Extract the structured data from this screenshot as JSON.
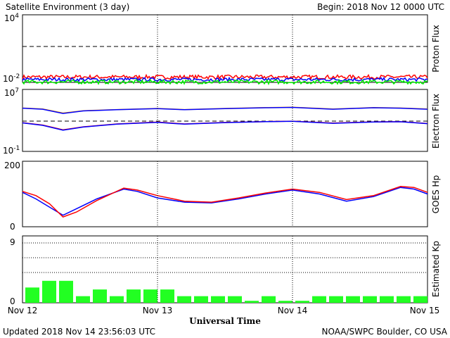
{
  "header": {
    "title": "Satellite Environment (3 day)",
    "begin": "Begin:  2018 Nov 12 0000 UTC"
  },
  "footer": {
    "updated": "Updated 2018 Nov 14 23:56:03 UTC",
    "credit": "NOAA/SWPC Boulder, CO USA"
  },
  "colors": {
    "red": "#ff0000",
    "blue": "#0000ff",
    "green": "#00ee00",
    "orange": "#ffa500",
    "kp_bar": "#22ff22"
  },
  "chart_data": [
    {
      "type": "line",
      "name": "proton-flux",
      "ylabel": "Proton Flux",
      "scale": "log",
      "ylim_exp": [
        -2,
        4
      ],
      "ytick_base": "10",
      "yticks": [
        {
          "base": "10",
          "exp": "4"
        },
        {
          "base": "10",
          "exp": "-2"
        }
      ],
      "threshold": 10,
      "x_days": [
        0,
        3
      ],
      "series": [
        {
          "color": "red",
          "level": 0.03,
          "noise": 0.35
        },
        {
          "color": "blue",
          "level": 0.018,
          "noise": 0.3
        },
        {
          "color": "green",
          "level": 0.011,
          "noise": 0.35
        }
      ]
    },
    {
      "type": "line",
      "name": "electron-flux",
      "ylabel": "Electron Flux",
      "scale": "log",
      "ylim_exp": [
        -1,
        7
      ],
      "yticks": [
        {
          "base": "10",
          "exp": "7"
        },
        {
          "base": "10",
          "exp": "-1"
        }
      ],
      "threshold": 1000,
      "series": [
        {
          "color": "orange",
          "x": [
            0,
            0.15,
            0.3,
            0.45,
            0.7,
            1.0,
            1.2,
            1.5,
            1.8,
            2.0,
            2.3,
            2.6,
            2.8,
            3.0
          ],
          "y": [
            40000,
            30000,
            9000,
            18000,
            25000,
            35000,
            25000,
            35000,
            45000,
            50000,
            30000,
            45000,
            40000,
            30000
          ]
        },
        {
          "color": "blue",
          "x": [
            0,
            0.15,
            0.3,
            0.45,
            0.7,
            1.0,
            1.2,
            1.5,
            1.8,
            2.0,
            2.3,
            2.6,
            2.8,
            3.0
          ],
          "y": [
            38000,
            28000,
            8000,
            17000,
            24000,
            33000,
            24000,
            33000,
            43000,
            48000,
            28000,
            43000,
            38000,
            28000
          ]
        },
        {
          "color": "red",
          "x": [
            0,
            0.15,
            0.3,
            0.45,
            0.7,
            1.0,
            1.2,
            1.5,
            1.8,
            2.0,
            2.3,
            2.6,
            2.8,
            3.0
          ],
          "y": [
            500,
            250,
            60,
            150,
            350,
            600,
            350,
            550,
            700,
            800,
            450,
            650,
            700,
            400
          ]
        },
        {
          "color": "blue",
          "x": [
            0,
            0.15,
            0.3,
            0.45,
            0.7,
            1.0,
            1.2,
            1.5,
            1.8,
            2.0,
            2.3,
            2.6,
            2.8,
            3.0
          ],
          "y": [
            480,
            230,
            55,
            140,
            330,
            560,
            330,
            520,
            680,
            760,
            420,
            620,
            670,
            380
          ]
        }
      ]
    },
    {
      "type": "line",
      "name": "goes-hp",
      "ylabel": "GOES Hp",
      "scale": "linear",
      "ylim": [
        0,
        200
      ],
      "yticks": [
        "200",
        "0"
      ],
      "series": [
        {
          "color": "blue",
          "x": [
            0,
            0.1,
            0.2,
            0.3,
            0.4,
            0.55,
            0.75,
            0.85,
            1.0,
            1.2,
            1.4,
            1.6,
            1.8,
            2.0,
            2.2,
            2.4,
            2.6,
            2.8,
            2.9,
            3.0
          ],
          "y": [
            105,
            85,
            60,
            35,
            55,
            85,
            115,
            108,
            88,
            75,
            73,
            85,
            100,
            112,
            100,
            78,
            92,
            120,
            115,
            100
          ]
        },
        {
          "color": "red",
          "x": [
            0,
            0.1,
            0.2,
            0.3,
            0.4,
            0.55,
            0.75,
            0.85,
            1.0,
            1.2,
            1.4,
            1.6,
            1.8,
            2.0,
            2.2,
            2.4,
            2.6,
            2.8,
            2.9,
            3.0
          ],
          "y": [
            108,
            95,
            70,
            30,
            45,
            80,
            118,
            112,
            95,
            78,
            75,
            88,
            103,
            115,
            105,
            83,
            95,
            123,
            120,
            105
          ]
        }
      ]
    },
    {
      "type": "bar",
      "name": "estimated-kp",
      "ylabel": "Estimated Kp",
      "ylim": [
        0,
        9
      ],
      "yticks": [
        "9",
        "0"
      ],
      "values": [
        2.3,
        3.3,
        3.3,
        1.0,
        2.0,
        1.0,
        2.0,
        2.0,
        2.0,
        1.0,
        1.0,
        1.0,
        1.0,
        0.3,
        1.0,
        0.3,
        0.3,
        1.0,
        1.0,
        1.0,
        1.0,
        1.0,
        1.0,
        1.0
      ]
    }
  ],
  "xaxis": {
    "label": "Universal Time",
    "ticks": [
      "Nov 12",
      "Nov 13",
      "Nov 14",
      "Nov 15"
    ]
  }
}
